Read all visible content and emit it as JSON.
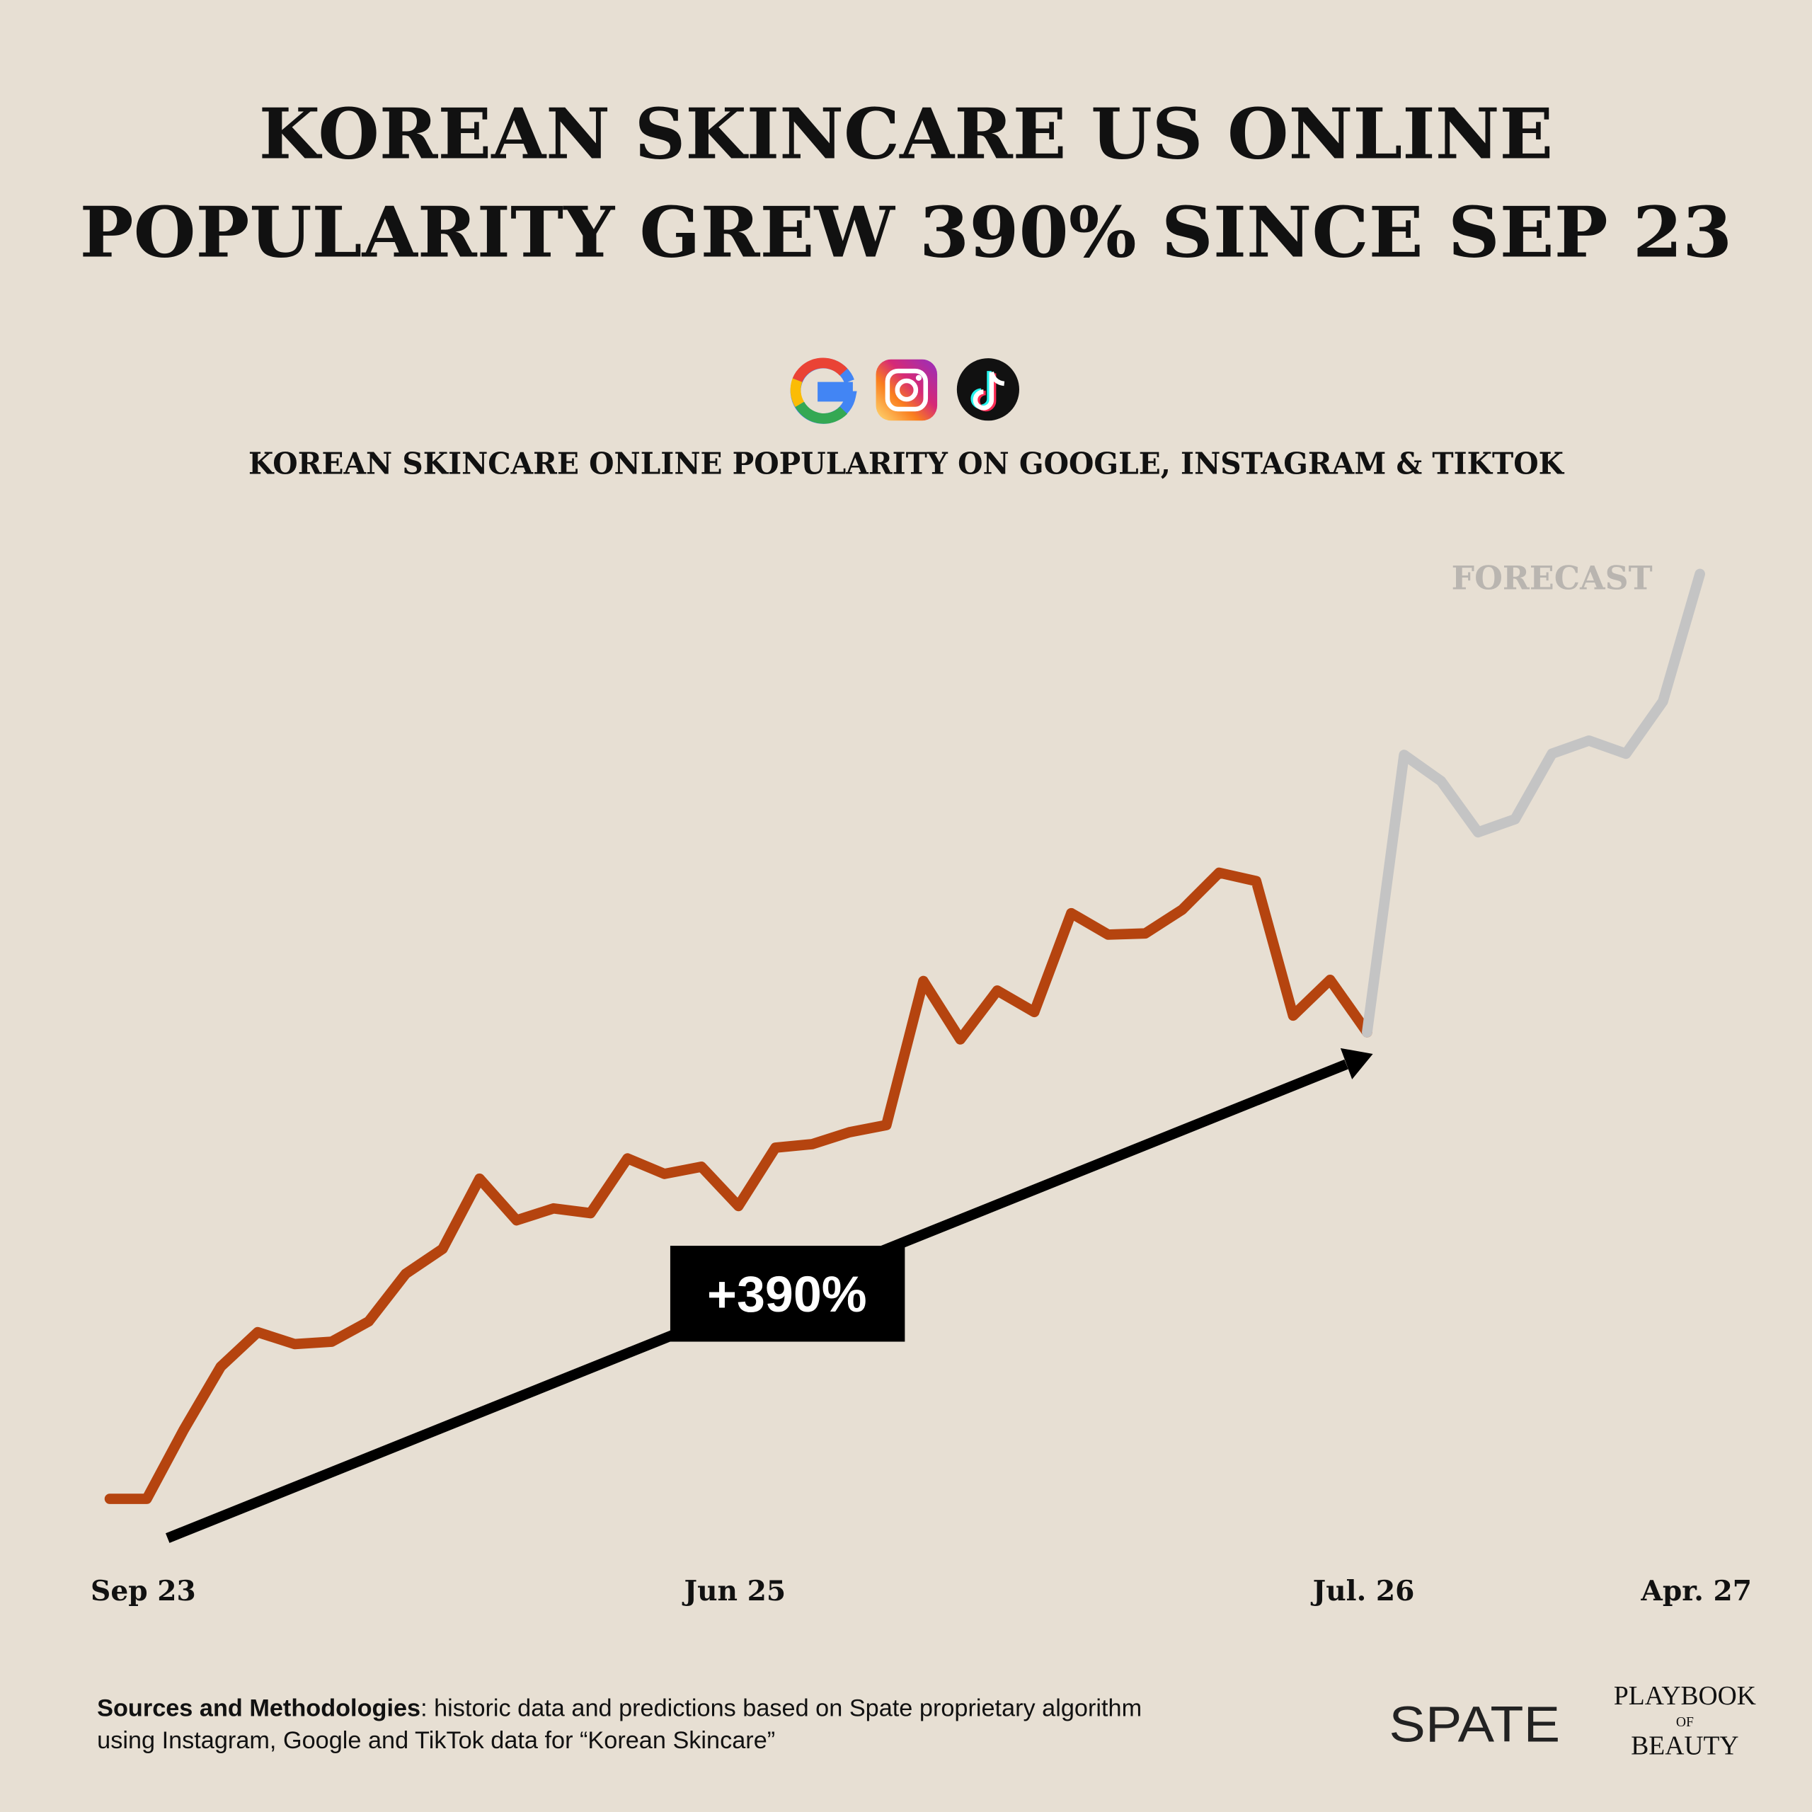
{
  "chart_data": {
    "type": "line",
    "title": [
      "KOREAN SKINCARE US ONLINE",
      "POPULARITY GREW 390% SINCE SEP 23"
    ],
    "subtitle": "KOREAN SKINCARE ONLINE POPULARITY ON GOOGLE, INSTAGRAM & TIKTOK",
    "categories": [
      "Sep 23",
      null,
      null,
      null,
      null,
      null,
      null,
      null,
      null,
      null,
      null,
      null,
      null,
      null,
      null,
      null,
      null,
      "Jun 25",
      null,
      null,
      null,
      null,
      null,
      null,
      null,
      null,
      null,
      null,
      null,
      null,
      null,
      null,
      null,
      null,
      "Jul. 26",
      null,
      null,
      null,
      null,
      null,
      null,
      null,
      null,
      "Apr. 27"
    ],
    "series": [
      {
        "color": "#b5440f",
        "values": [
          100,
          100,
          158,
          211,
          240,
          230,
          232,
          249,
          289,
          310,
          369,
          334,
          344,
          340,
          386,
          373,
          379,
          346,
          395,
          398,
          408,
          414,
          535,
          486,
          527,
          509,
          592,
          574,
          575,
          595,
          626,
          619,
          506,
          536,
          492,
          null,
          null,
          null,
          null,
          null,
          null,
          null,
          null,
          null
        ]
      },
      {
        "name": "FORECAST",
        "color": "#c4c4c4",
        "values": [
          null,
          null,
          null,
          null,
          null,
          null,
          null,
          null,
          null,
          null,
          null,
          null,
          null,
          null,
          null,
          null,
          null,
          null,
          null,
          null,
          null,
          null,
          null,
          null,
          null,
          null,
          null,
          null,
          null,
          null,
          null,
          null,
          null,
          null,
          492,
          725,
          703,
          660,
          671,
          726,
          737,
          726,
          770,
          877
        ]
      }
    ],
    "ylim": [
      0,
      900
    ],
    "annotation": "+390%",
    "sources": {
      "label": "Sources and Methodologies",
      "lines": [
        ": historic data and predictions based on Spate proprietary algorithm",
        "using Instagram, Google and TikTok data for “Korean Skincare”"
      ]
    },
    "brands": {
      "spate": "SPATE",
      "playbook": [
        "PLAYBOOK",
        "OF",
        "BEAUTY"
      ]
    }
  }
}
